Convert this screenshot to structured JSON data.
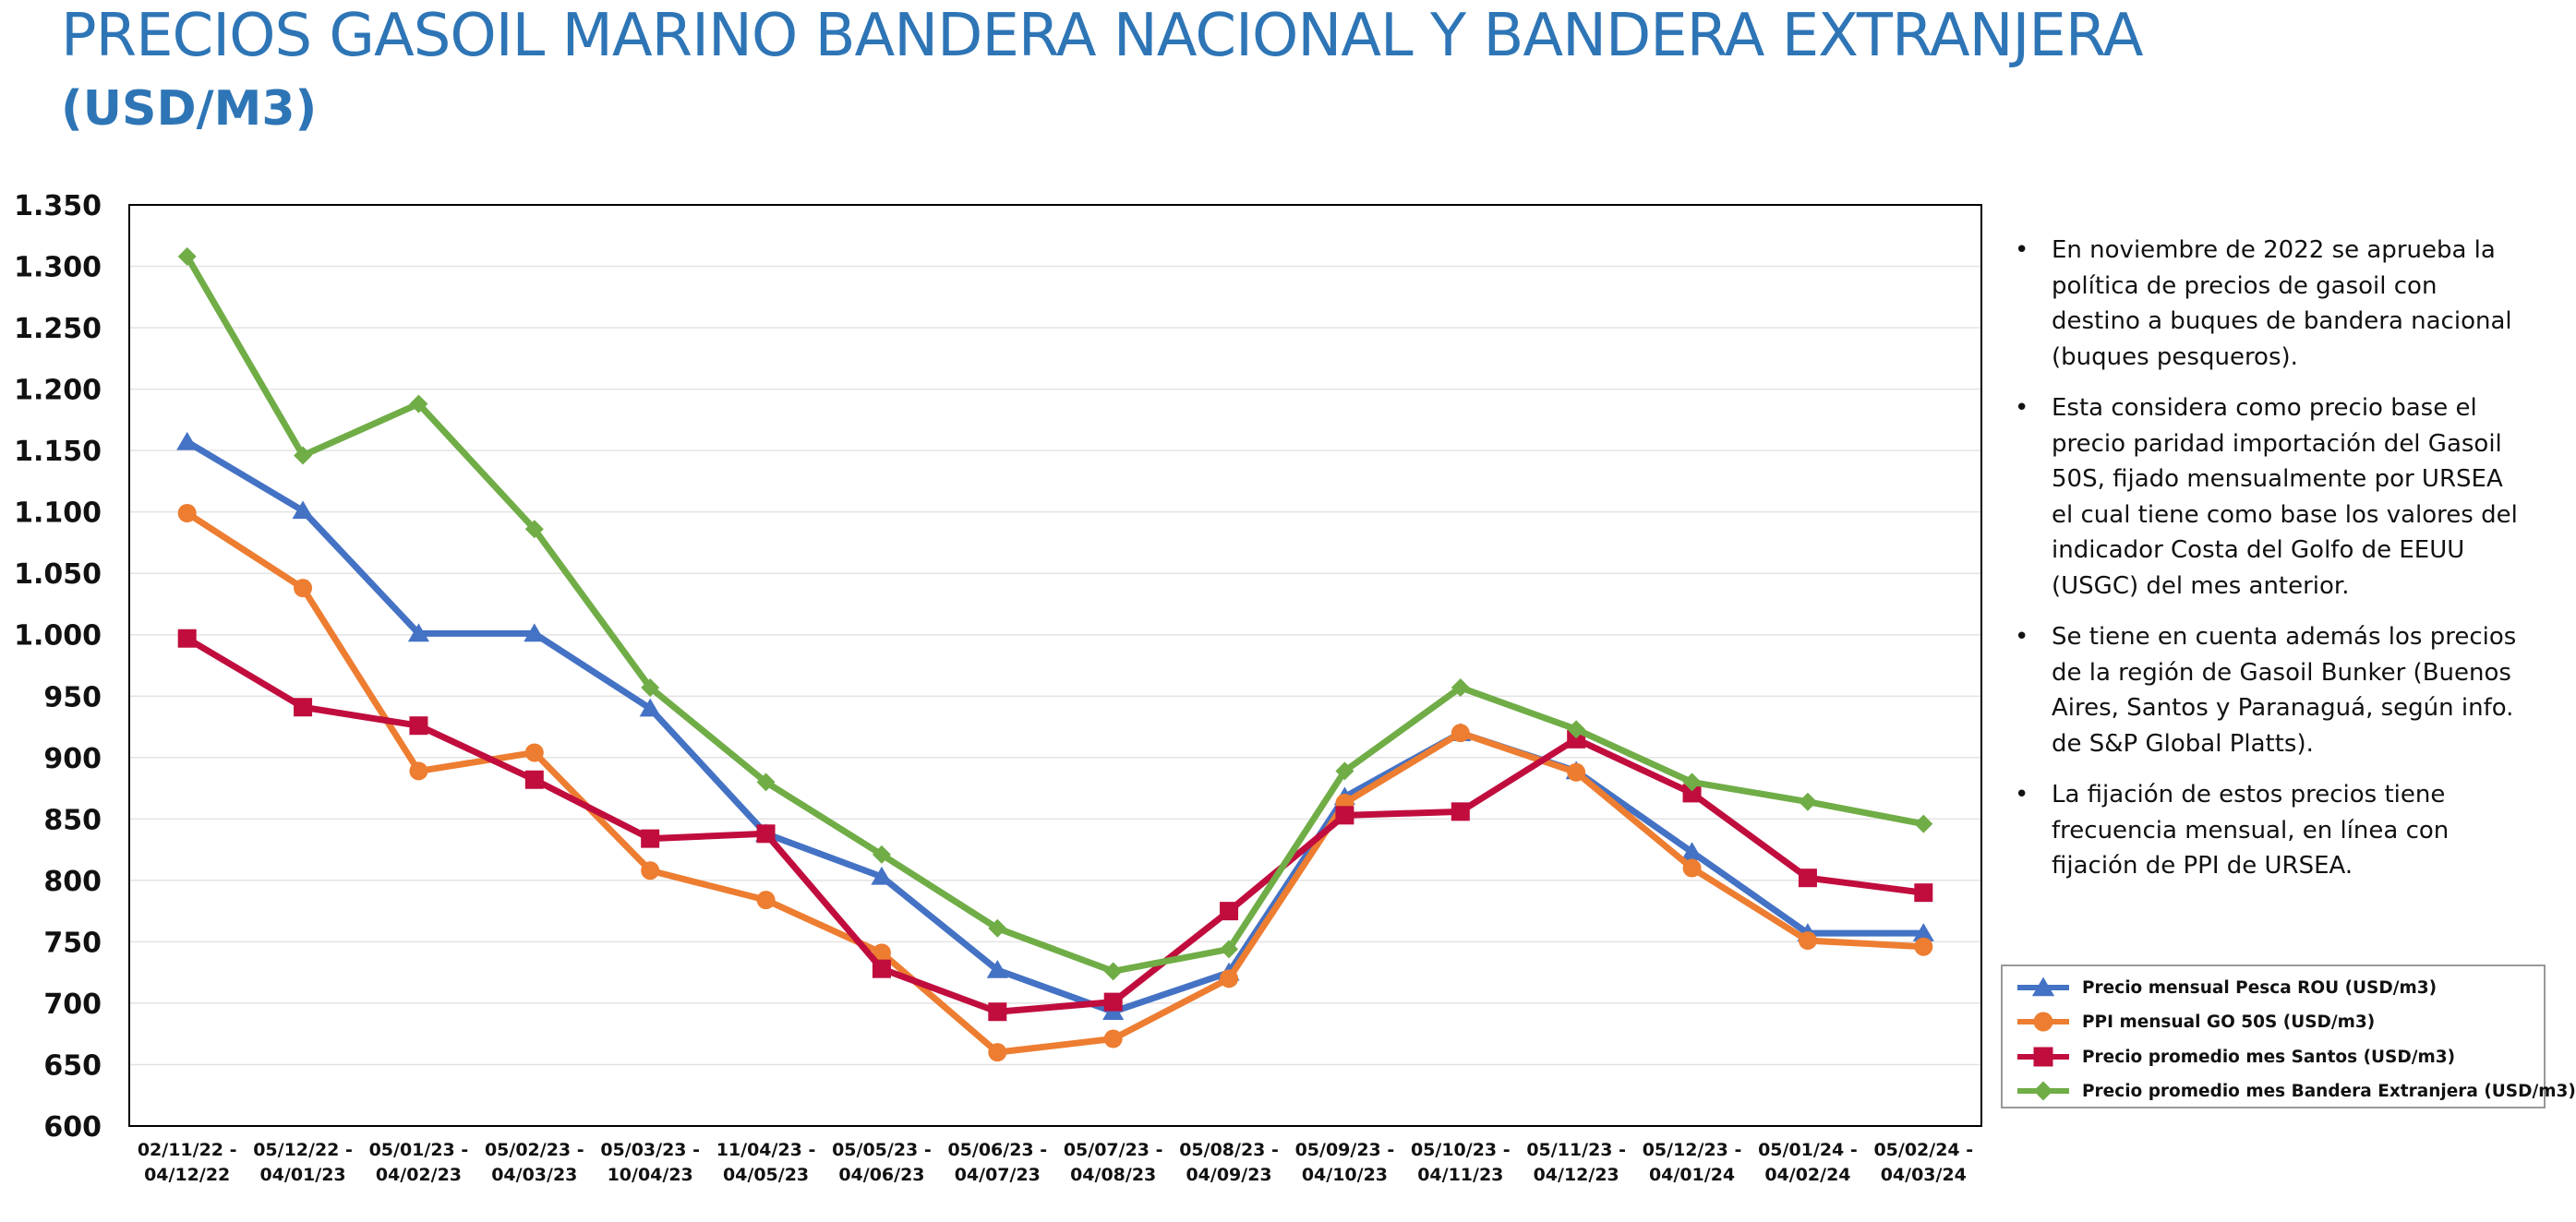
{
  "header": {
    "title": "PRECIOS GASOIL MARINO BANDERA NACIONAL Y BANDERA EXTRANJERA",
    "subtitle": "(USD/M3)"
  },
  "notes": [
    "En noviembre de 2022 se aprueba la política de precios de gasoil con destino a buques de bandera nacional (buques pesqueros).",
    "Esta considera como precio base el precio paridad importación del Gasoil 50S, fijado mensualmente por URSEA el cual tiene como base los valores del indicador Costa del Golfo de EEUU (USGC) del mes anterior.",
    "Se tiene en cuenta además los precios de la región de Gasoil Bunker (Buenos Aires, Santos y Paranaguá, según info. de S&P Global Platts).",
    "La fijación de estos precios tiene frecuencia mensual, en línea con fijación de PPI de URSEA."
  ],
  "chart_data": {
    "type": "line",
    "categories": [
      [
        "02/11/22 -",
        "04/12/22"
      ],
      [
        "05/12/22 -",
        "04/01/23"
      ],
      [
        "05/01/23 -",
        "04/02/23"
      ],
      [
        "05/02/23 -",
        "04/03/23"
      ],
      [
        "05/03/23 -",
        "10/04/23"
      ],
      [
        "11/04/23 -",
        "04/05/23"
      ],
      [
        "05/05/23 -",
        "04/06/23"
      ],
      [
        "05/06/23 -",
        "04/07/23"
      ],
      [
        "05/07/23 -",
        "04/08/23"
      ],
      [
        "05/08/23 -",
        "04/09/23"
      ],
      [
        "05/09/23 -",
        "04/10/23"
      ],
      [
        "05/10/23 -",
        "04/11/23"
      ],
      [
        "05/11/23 -",
        "04/12/23"
      ],
      [
        "05/12/23 -",
        "04/01/24"
      ],
      [
        "05/01/24 -",
        "04/02/24"
      ],
      [
        "05/02/24 -",
        "04/03/24"
      ]
    ],
    "ylim": [
      600,
      1350
    ],
    "yticks": [
      600,
      650,
      700,
      750,
      800,
      850,
      900,
      950,
      1000,
      1050,
      1100,
      1150,
      1200,
      1250,
      1300,
      1350
    ],
    "ytick_labels": [
      "600",
      "650",
      "700",
      "750",
      "800",
      "850",
      "900",
      "950",
      "1.000",
      "1.050",
      "1.100",
      "1.150",
      "1.200",
      "1.250",
      "1.300",
      "1.350"
    ],
    "grid": true,
    "legend_position": "bottom-right",
    "series": [
      {
        "name": "Precio mensual Pesca ROU (USD/m3)",
        "color": "#4472C4",
        "marker": "triangle",
        "values": [
          1157,
          1101,
          1001,
          1001,
          940,
          838,
          803,
          727,
          693,
          725,
          868,
          920,
          889,
          823,
          757,
          757
        ]
      },
      {
        "name": "PPI mensual GO 50S (USD/m3)",
        "color": "#ED7D31",
        "marker": "circle",
        "values": [
          1099,
          1038,
          889,
          904,
          808,
          784,
          741,
          660,
          671,
          720,
          863,
          920,
          888,
          810,
          751,
          746
        ]
      },
      {
        "name": "Precio promedio mes Santos (USD/m3)",
        "color": "#C00D3E",
        "marker": "square",
        "values": [
          997,
          941,
          926,
          882,
          834,
          838,
          728,
          693,
          701,
          775,
          853,
          856,
          915,
          871,
          802,
          790
        ]
      },
      {
        "name": "Precio promedio mes Bandera Extranjera (USD/m3)",
        "color": "#70AD47",
        "marker": "diamond",
        "values": [
          1308,
          1146,
          1188,
          1086,
          957,
          880,
          821,
          761,
          726,
          744,
          889,
          957,
          923,
          880,
          864,
          846
        ]
      }
    ]
  }
}
